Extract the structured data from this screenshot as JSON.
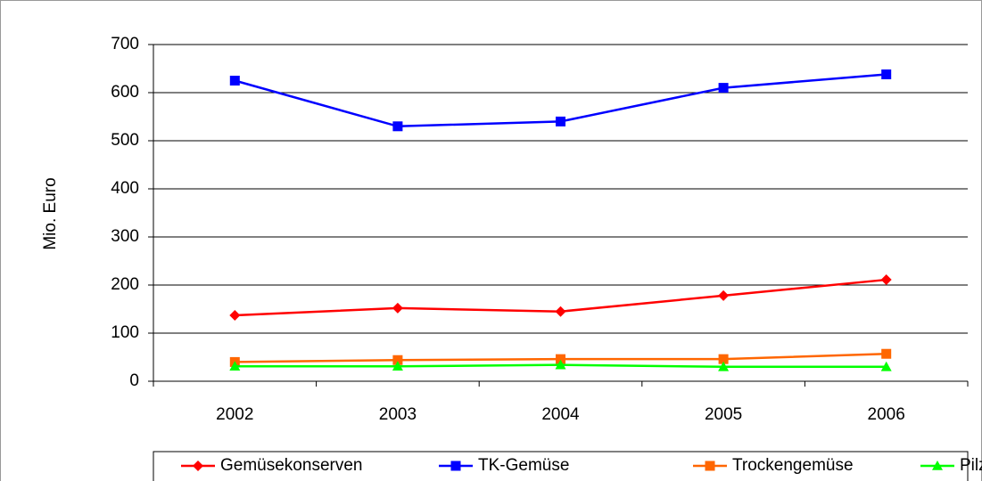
{
  "chart_data": {
    "type": "line",
    "y_label": "Mio. Euro",
    "categories": [
      "2002",
      "2003",
      "2004",
      "2005",
      "2006"
    ],
    "series": [
      {
        "name": "Gemüsekonserven",
        "color": "#ff0000",
        "marker": "diamond",
        "values": [
          137,
          152,
          145,
          178,
          211
        ]
      },
      {
        "name": "TK-Gemüse",
        "color": "#0000ff",
        "marker": "square",
        "values": [
          625,
          530,
          540,
          610,
          638
        ]
      },
      {
        "name": "Trockengemüse",
        "color": "#ff6600",
        "marker": "square",
        "values": [
          40,
          44,
          46,
          46,
          57
        ]
      },
      {
        "name": "Pilze",
        "color": "#00ff00",
        "marker": "triangle",
        "values": [
          31,
          31,
          34,
          30,
          30
        ]
      }
    ],
    "ylim": [
      0,
      700
    ],
    "yticks": [
      0,
      100,
      200,
      300,
      400,
      500,
      600,
      700
    ],
    "grid": true,
    "legend": "bottom"
  }
}
